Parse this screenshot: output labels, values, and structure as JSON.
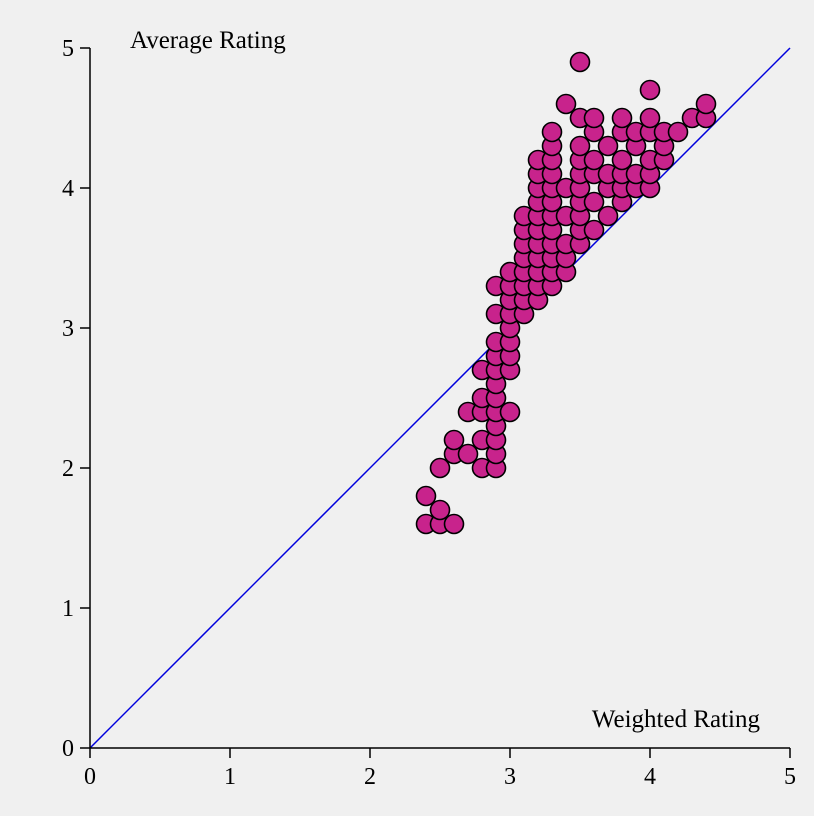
{
  "chart_data": {
    "type": "scatter",
    "title": "",
    "xlabel": "Weighted Rating",
    "ylabel": "Average Rating",
    "xlim": [
      0,
      5
    ],
    "ylim": [
      0,
      5
    ],
    "xticks": [
      "0",
      "1",
      "2",
      "3",
      "4",
      "5"
    ],
    "yticks": [
      "0",
      "1",
      "2",
      "3",
      "4",
      "5"
    ],
    "grid": false,
    "point_color": "#c8238c",
    "reference_line": {
      "x": [
        0,
        5
      ],
      "y": [
        0,
        5
      ],
      "color": "#0000dd"
    },
    "series": [
      {
        "points": [
          [
            2.4,
            1.6
          ],
          [
            2.5,
            1.6
          ],
          [
            2.6,
            1.6
          ],
          [
            2.4,
            1.8
          ],
          [
            2.5,
            1.7
          ],
          [
            2.5,
            2.0
          ],
          [
            2.6,
            2.1
          ],
          [
            2.6,
            2.2
          ],
          [
            2.7,
            2.1
          ],
          [
            2.7,
            2.4
          ],
          [
            2.8,
            2.0
          ],
          [
            2.8,
            2.2
          ],
          [
            2.8,
            2.4
          ],
          [
            2.8,
            2.5
          ],
          [
            2.8,
            2.7
          ],
          [
            2.9,
            2.0
          ],
          [
            2.9,
            2.1
          ],
          [
            2.9,
            2.2
          ],
          [
            2.9,
            2.3
          ],
          [
            2.9,
            2.4
          ],
          [
            2.9,
            2.5
          ],
          [
            2.9,
            2.6
          ],
          [
            2.9,
            2.7
          ],
          [
            2.9,
            2.8
          ],
          [
            2.9,
            2.9
          ],
          [
            2.9,
            3.1
          ],
          [
            2.9,
            3.3
          ],
          [
            3.0,
            2.4
          ],
          [
            3.0,
            2.7
          ],
          [
            3.0,
            2.8
          ],
          [
            3.0,
            2.9
          ],
          [
            3.0,
            3.0
          ],
          [
            3.0,
            3.1
          ],
          [
            3.0,
            3.2
          ],
          [
            3.0,
            3.3
          ],
          [
            3.0,
            3.4
          ],
          [
            3.1,
            3.1
          ],
          [
            3.1,
            3.2
          ],
          [
            3.1,
            3.3
          ],
          [
            3.1,
            3.4
          ],
          [
            3.1,
            3.5
          ],
          [
            3.1,
            3.6
          ],
          [
            3.1,
            3.7
          ],
          [
            3.1,
            3.8
          ],
          [
            3.2,
            3.2
          ],
          [
            3.2,
            3.3
          ],
          [
            3.2,
            3.4
          ],
          [
            3.2,
            3.5
          ],
          [
            3.2,
            3.6
          ],
          [
            3.2,
            3.7
          ],
          [
            3.2,
            3.8
          ],
          [
            3.2,
            3.9
          ],
          [
            3.2,
            4.0
          ],
          [
            3.2,
            4.1
          ],
          [
            3.2,
            4.2
          ],
          [
            3.3,
            3.3
          ],
          [
            3.3,
            3.4
          ],
          [
            3.3,
            3.5
          ],
          [
            3.3,
            3.6
          ],
          [
            3.3,
            3.7
          ],
          [
            3.3,
            3.8
          ],
          [
            3.3,
            3.9
          ],
          [
            3.3,
            4.0
          ],
          [
            3.3,
            4.1
          ],
          [
            3.3,
            4.2
          ],
          [
            3.3,
            4.3
          ],
          [
            3.3,
            4.4
          ],
          [
            3.4,
            3.4
          ],
          [
            3.4,
            3.5
          ],
          [
            3.4,
            3.6
          ],
          [
            3.4,
            3.8
          ],
          [
            3.4,
            4.0
          ],
          [
            3.4,
            4.6
          ],
          [
            3.5,
            3.6
          ],
          [
            3.5,
            3.7
          ],
          [
            3.5,
            3.8
          ],
          [
            3.5,
            3.9
          ],
          [
            3.5,
            4.0
          ],
          [
            3.5,
            4.1
          ],
          [
            3.5,
            4.2
          ],
          [
            3.5,
            4.3
          ],
          [
            3.5,
            4.5
          ],
          [
            3.5,
            4.9
          ],
          [
            3.6,
            3.7
          ],
          [
            3.6,
            3.9
          ],
          [
            3.6,
            4.1
          ],
          [
            3.6,
            4.2
          ],
          [
            3.6,
            4.4
          ],
          [
            3.6,
            4.5
          ],
          [
            3.7,
            3.8
          ],
          [
            3.7,
            4.0
          ],
          [
            3.7,
            4.1
          ],
          [
            3.7,
            4.3
          ],
          [
            3.8,
            3.9
          ],
          [
            3.8,
            4.0
          ],
          [
            3.8,
            4.1
          ],
          [
            3.8,
            4.2
          ],
          [
            3.8,
            4.4
          ],
          [
            3.8,
            4.5
          ],
          [
            3.9,
            4.0
          ],
          [
            3.9,
            4.1
          ],
          [
            3.9,
            4.3
          ],
          [
            3.9,
            4.4
          ],
          [
            4.0,
            4.0
          ],
          [
            4.0,
            4.1
          ],
          [
            4.0,
            4.2
          ],
          [
            4.0,
            4.4
          ],
          [
            4.0,
            4.5
          ],
          [
            4.0,
            4.7
          ],
          [
            4.1,
            4.2
          ],
          [
            4.1,
            4.3
          ],
          [
            4.1,
            4.4
          ],
          [
            4.2,
            4.4
          ],
          [
            4.3,
            4.5
          ],
          [
            4.4,
            4.5
          ],
          [
            4.4,
            4.6
          ]
        ]
      }
    ]
  }
}
